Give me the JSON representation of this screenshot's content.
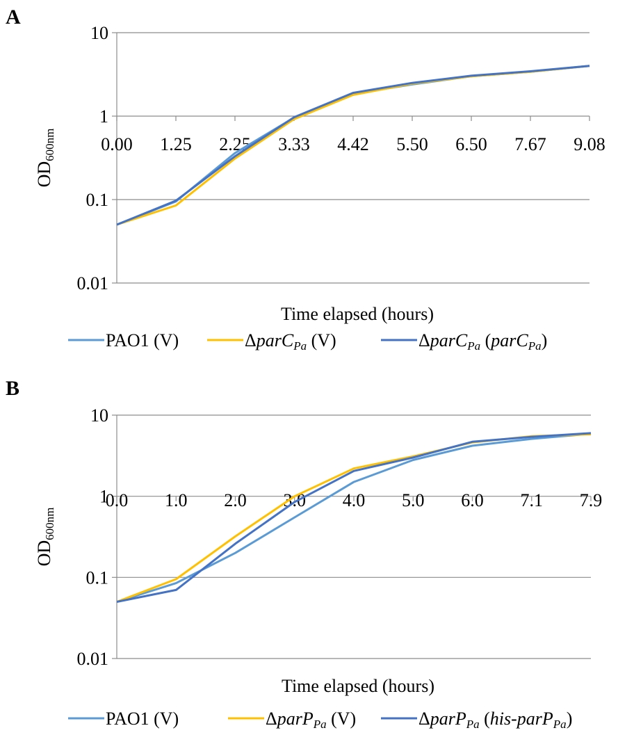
{
  "chart_data": [
    {
      "panel": "A",
      "type": "line",
      "xlabel": "Time elapsed (hours)",
      "ylabel": "OD",
      "ylabel_sub": "600nm",
      "yscale": "log",
      "ylim": [
        0.01,
        10
      ],
      "yticks": [
        "10",
        "1",
        "0.1",
        "0.01"
      ],
      "categories": [
        "0.00",
        "1.25",
        "2.25",
        "3.33",
        "4.42",
        "5.50",
        "6.50",
        "7.67",
        "9.08"
      ],
      "grid": "horizontal",
      "legend": "bottom",
      "series": [
        {
          "legend_parts": [
            {
              "t": "PAO1 (V)",
              "i": false
            }
          ],
          "color": "#5b9bd5",
          "values": [
            0.05,
            0.095,
            0.36,
            0.96,
            1.85,
            2.4,
            3.0,
            3.4,
            4.0
          ]
        },
        {
          "legend_parts": [
            {
              "t": "Δ",
              "i": false
            },
            {
              "t": "parC",
              "i": true
            },
            {
              "t": "Pa",
              "i": true,
              "sub": true
            },
            {
              "t": " (V)",
              "i": false
            }
          ],
          "color": "#ffc000",
          "values": [
            0.05,
            0.085,
            0.31,
            0.92,
            1.8,
            2.45,
            3.0,
            3.4,
            4.0
          ]
        },
        {
          "legend_parts": [
            {
              "t": "Δ",
              "i": false
            },
            {
              "t": "parC",
              "i": true
            },
            {
              "t": "Pa",
              "i": true,
              "sub": true
            },
            {
              "t": " (",
              "i": false
            },
            {
              "t": "parC",
              "i": true
            },
            {
              "t": "Pa",
              "i": true,
              "sub": true
            },
            {
              "t": ")",
              "i": false
            }
          ],
          "color": "#4472c4",
          "values": [
            0.05,
            0.097,
            0.33,
            0.97,
            1.9,
            2.5,
            3.05,
            3.45,
            4.0
          ]
        }
      ]
    },
    {
      "panel": "B",
      "type": "line",
      "xlabel": "Time elapsed (hours)",
      "ylabel": "OD",
      "ylabel_sub": "600nm",
      "yscale": "log",
      "ylim": [
        0.01,
        10
      ],
      "yticks": [
        "10",
        "1",
        "0.1",
        "0.01"
      ],
      "categories": [
        "0.0",
        "1.0",
        "2.0",
        "3.0",
        "4.0",
        "5.0",
        "6.0",
        "7.1",
        "7.9"
      ],
      "grid": "horizontal",
      "legend": "bottom",
      "series": [
        {
          "legend_parts": [
            {
              "t": "PAO1 (V)",
              "i": false
            }
          ],
          "color": "#5b9bd5",
          "values": [
            0.05,
            0.085,
            0.2,
            0.55,
            1.5,
            2.8,
            4.2,
            5.1,
            5.9
          ]
        },
        {
          "legend_parts": [
            {
              "t": "Δ",
              "i": false
            },
            {
              "t": "parP",
              "i": true
            },
            {
              "t": "Pa",
              "i": true,
              "sub": true
            },
            {
              "t": " (V)",
              "i": false
            }
          ],
          "color": "#ffc000",
          "values": [
            0.05,
            0.095,
            0.32,
            1.0,
            2.2,
            3.1,
            4.6,
            5.5,
            5.8
          ]
        },
        {
          "legend_parts": [
            {
              "t": "Δ",
              "i": false
            },
            {
              "t": "parP",
              "i": true
            },
            {
              "t": "Pa",
              "i": true,
              "sub": true
            },
            {
              "t": " (",
              "i": false
            },
            {
              "t": "his-parP",
              "i": true
            },
            {
              "t": "Pa",
              "i": true,
              "sub": true
            },
            {
              "t": ")",
              "i": false
            }
          ],
          "color": "#4472c4",
          "values": [
            0.05,
            0.07,
            0.26,
            0.85,
            2.05,
            3.0,
            4.7,
            5.4,
            6.0
          ]
        }
      ]
    }
  ]
}
